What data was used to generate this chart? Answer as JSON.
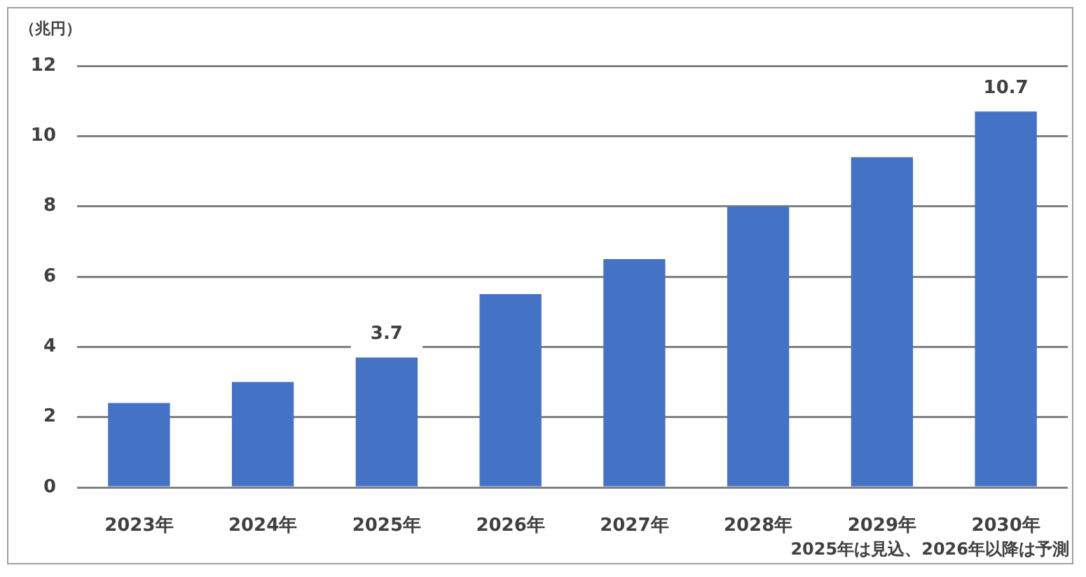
{
  "chart_data": {
    "type": "bar",
    "ylabel": "（兆円）",
    "categories": [
      "2023年",
      "2024年",
      "2025年",
      "2026年",
      "2027年",
      "2028年",
      "2029年",
      "2030年"
    ],
    "values": [
      2.4,
      3.0,
      3.7,
      5.5,
      6.5,
      8.0,
      9.4,
      10.7
    ],
    "value_labels": [
      null,
      null,
      "3.7",
      null,
      null,
      null,
      null,
      "10.7"
    ],
    "color": "#4472c4",
    "ylim": [
      0,
      12
    ],
    "yticks": [
      0,
      2,
      4,
      6,
      8,
      10,
      12
    ],
    "grid": "y",
    "annotations": [
      "2025年は見込、2026年以降は予測"
    ]
  }
}
